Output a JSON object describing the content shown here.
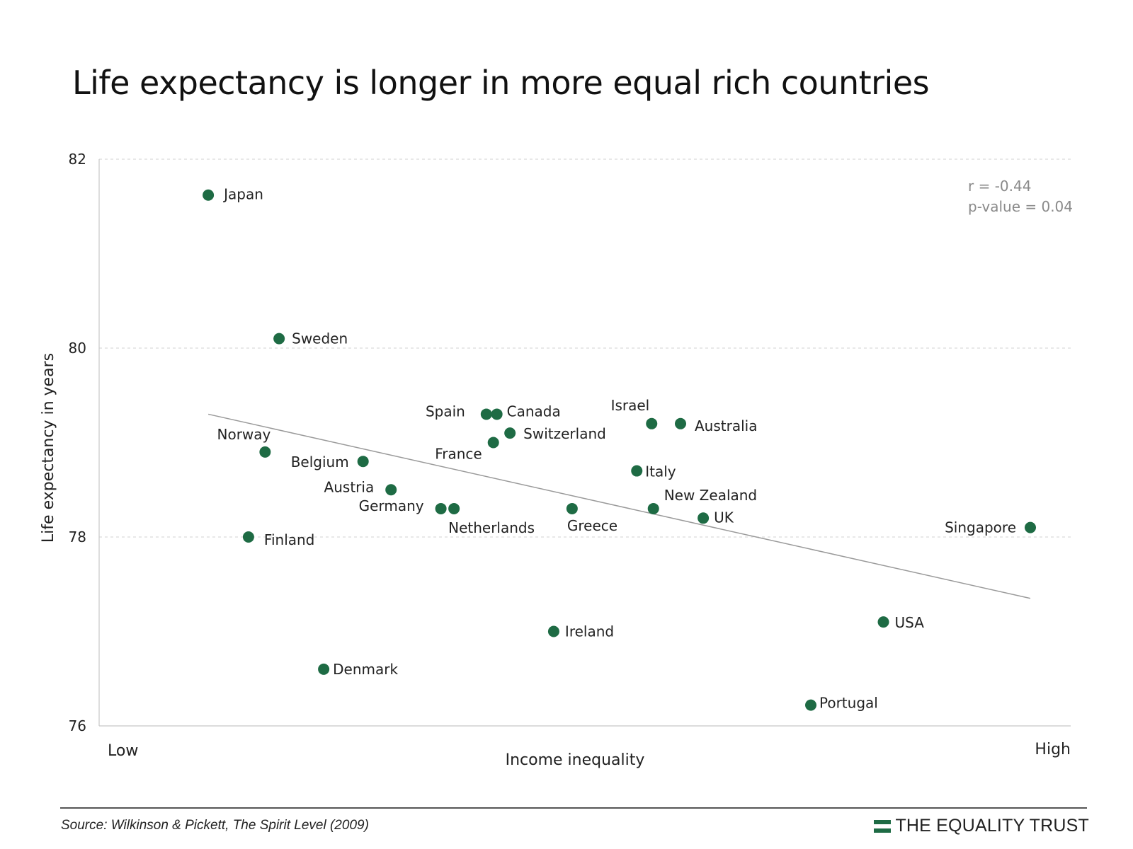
{
  "chart_data": {
    "type": "scatter",
    "title": "Life expectancy is longer in more equal rich countries",
    "xlabel": "Income inequality",
    "ylabel": "Life expectancy in years",
    "x_low_label": "Low",
    "x_high_label": "High",
    "xlim": [
      0,
      100
    ],
    "ylim": [
      76,
      82
    ],
    "yticks": [
      "82",
      "80",
      "78",
      "76"
    ],
    "grid": true,
    "points": [
      {
        "label": "Japan",
        "x": 6.0,
        "y": 81.62
      },
      {
        "label": "Sweden",
        "x": 14.1,
        "y": 80.1
      },
      {
        "label": "Norway",
        "x": 12.5,
        "y": 78.9
      },
      {
        "label": "Finland",
        "x": 10.6,
        "y": 78.0
      },
      {
        "label": "Denmark",
        "x": 19.2,
        "y": 76.6
      },
      {
        "label": "Belgium",
        "x": 23.7,
        "y": 78.8
      },
      {
        "label": "Austria",
        "x": 26.9,
        "y": 78.5
      },
      {
        "label": "Germany",
        "x": 32.6,
        "y": 78.3
      },
      {
        "label": "Netherlands",
        "x": 34.1,
        "y": 78.3
      },
      {
        "label": "Spain",
        "x": 37.8,
        "y": 79.3
      },
      {
        "label": "Canada",
        "x": 39.0,
        "y": 79.3
      },
      {
        "label": "France",
        "x": 38.6,
        "y": 79.0
      },
      {
        "label": "Switzerland",
        "x": 40.5,
        "y": 79.1
      },
      {
        "label": "Greece",
        "x": 47.6,
        "y": 78.3
      },
      {
        "label": "Ireland",
        "x": 45.5,
        "y": 77.0
      },
      {
        "label": "Israel",
        "x": 56.7,
        "y": 79.2
      },
      {
        "label": "Australia",
        "x": 60.0,
        "y": 79.2
      },
      {
        "label": "Italy",
        "x": 55.0,
        "y": 78.7
      },
      {
        "label": "New Zealand",
        "x": 56.9,
        "y": 78.3
      },
      {
        "label": "UK",
        "x": 62.6,
        "y": 78.2
      },
      {
        "label": "Portugal",
        "x": 74.9,
        "y": 76.22
      },
      {
        "label": "USA",
        "x": 83.2,
        "y": 77.1
      },
      {
        "label": "Singapore",
        "x": 100.0,
        "y": 78.1
      }
    ],
    "trendline": {
      "x": [
        6.0,
        100.0
      ],
      "y": [
        79.3,
        77.35
      ]
    },
    "stats": {
      "r": "r = -0.44",
      "p_value": "p-value = 0.04"
    }
  },
  "footer": {
    "source": "Source: Wilkinson & Pickett, The Spirit Level (2009)",
    "brand": "THE EQUALITY TRUST"
  },
  "colors": {
    "point": "#1e6b44",
    "trend": "#9a9a9a",
    "grid": "#d9d9d9"
  }
}
